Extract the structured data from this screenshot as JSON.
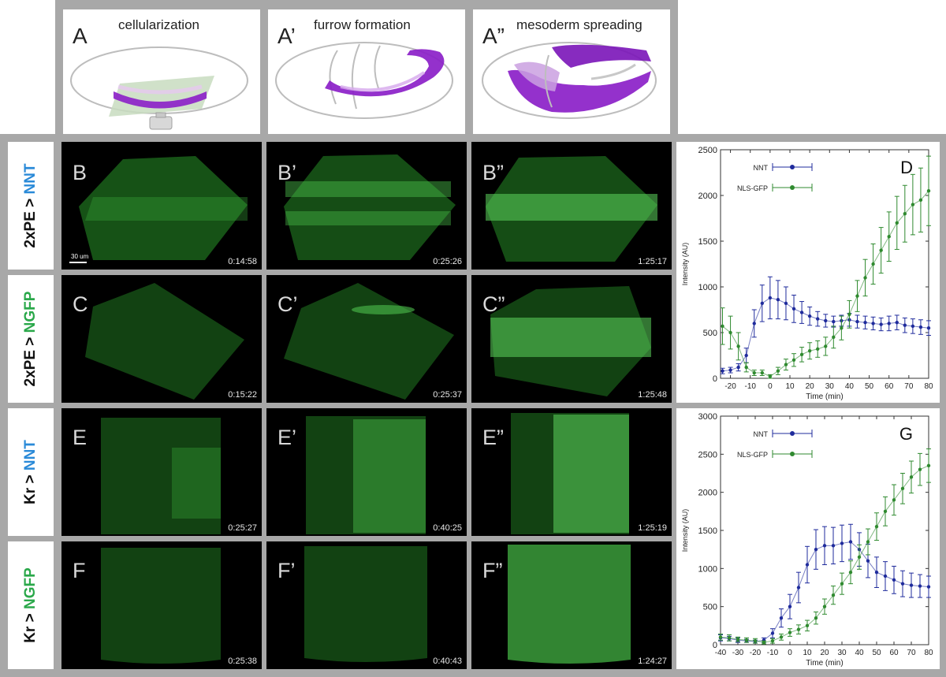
{
  "top_panels": [
    {
      "letter": "A",
      "title": "cellularization"
    },
    {
      "letter": "A’",
      "title": "furrow formation"
    },
    {
      "letter": "A”",
      "title": "mesoderm spreading"
    }
  ],
  "rows": [
    {
      "promoter": "2xPE",
      "arrow": ">",
      "reporter": "NNT",
      "reporter_color": "#2a8ad8",
      "panels": [
        {
          "letter": "B",
          "time": "0:14:58"
        },
        {
          "letter": "B’",
          "time": "0:25:26"
        },
        {
          "letter": "B”",
          "time": "1:25:17"
        }
      ]
    },
    {
      "promoter": "2xPE",
      "arrow": ">",
      "reporter": "NGFP",
      "reporter_color": "#2aa84a",
      "panels": [
        {
          "letter": "C",
          "time": "0:15:22"
        },
        {
          "letter": "C’",
          "time": "0:25:37"
        },
        {
          "letter": "C”",
          "time": "1:25:48"
        }
      ]
    },
    {
      "promoter": "Kr",
      "arrow": ">",
      "reporter": "NNT",
      "reporter_color": "#2a8ad8",
      "panels": [
        {
          "letter": "E",
          "time": "0:25:27"
        },
        {
          "letter": "E’",
          "time": "0:40:25"
        },
        {
          "letter": "E”",
          "time": "1:25:19"
        }
      ]
    },
    {
      "promoter": "Kr",
      "arrow": ">",
      "reporter": "NGFP",
      "reporter_color": "#2aa84a",
      "panels": [
        {
          "letter": "F",
          "time": "0:25:38"
        },
        {
          "letter": "F’",
          "time": "0:40:43"
        },
        {
          "letter": "F”",
          "time": "1:24:27"
        }
      ]
    }
  ],
  "scale_bar": "30 um",
  "colors": {
    "nnt": "#1f2b9c",
    "nls_gfp": "#2f8a2f",
    "microscopy_green": "#3aa83a",
    "embryo_purple": "#8b1fc8"
  },
  "chart_data": [
    {
      "type": "line",
      "panel_letter": "D",
      "xlabel": "Time (min)",
      "ylabel": "Intensity (AU)",
      "xlim": [
        -25,
        80
      ],
      "ylim": [
        0,
        2500
      ],
      "xticks": [
        -20,
        -10,
        0,
        10,
        20,
        30,
        40,
        50,
        60,
        70,
        80
      ],
      "yticks": [
        0,
        500,
        1000,
        1500,
        2000,
        2500
      ],
      "legend_position": "top-left",
      "series": [
        {
          "name": "NNT",
          "color": "#1f2b9c",
          "x": [
            -24,
            -20,
            -16,
            -12,
            -8,
            -4,
            0,
            4,
            8,
            12,
            16,
            20,
            24,
            28,
            32,
            36,
            40,
            44,
            48,
            52,
            56,
            60,
            64,
            68,
            72,
            76,
            80
          ],
          "y": [
            80,
            90,
            120,
            250,
            600,
            820,
            880,
            860,
            820,
            760,
            720,
            680,
            650,
            630,
            620,
            630,
            640,
            620,
            610,
            600,
            590,
            600,
            610,
            580,
            570,
            560,
            550
          ],
          "err": [
            30,
            30,
            40,
            80,
            150,
            200,
            230,
            210,
            180,
            150,
            120,
            100,
            80,
            70,
            60,
            60,
            70,
            70,
            70,
            70,
            70,
            80,
            80,
            80,
            80,
            80,
            80
          ]
        },
        {
          "name": "NLS-GFP",
          "color": "#2f8a2f",
          "x": [
            -24,
            -20,
            -16,
            -12,
            -8,
            -4,
            0,
            4,
            8,
            12,
            16,
            20,
            24,
            28,
            32,
            36,
            40,
            44,
            48,
            52,
            56,
            60,
            64,
            68,
            72,
            76,
            80
          ],
          "y": [
            570,
            500,
            350,
            120,
            60,
            60,
            20,
            80,
            150,
            200,
            260,
            300,
            320,
            350,
            450,
            550,
            700,
            900,
            1100,
            1250,
            1400,
            1550,
            1700,
            1800,
            1900,
            1950,
            2050
          ],
          "err": [
            200,
            180,
            150,
            50,
            30,
            30,
            20,
            40,
            60,
            70,
            80,
            90,
            90,
            100,
            120,
            130,
            150,
            170,
            200,
            220,
            250,
            270,
            290,
            310,
            330,
            350,
            380
          ]
        }
      ]
    },
    {
      "type": "line",
      "panel_letter": "G",
      "xlabel": "Time (min)",
      "ylabel": "Intensity (AU)",
      "xlim": [
        -40,
        80
      ],
      "ylim": [
        0,
        3000
      ],
      "xticks": [
        -40,
        -30,
        -20,
        -10,
        0,
        10,
        20,
        30,
        40,
        50,
        60,
        70,
        80
      ],
      "yticks": [
        0,
        500,
        1000,
        1500,
        2000,
        2500,
        3000
      ],
      "legend_position": "top-left",
      "series": [
        {
          "name": "NNT",
          "color": "#1f2b9c",
          "x": [
            -40,
            -35,
            -30,
            -25,
            -20,
            -15,
            -10,
            -5,
            0,
            5,
            10,
            15,
            20,
            25,
            30,
            35,
            40,
            45,
            50,
            55,
            60,
            65,
            70,
            75,
            80
          ],
          "y": [
            90,
            80,
            60,
            50,
            40,
            60,
            150,
            350,
            500,
            750,
            1050,
            1250,
            1300,
            1300,
            1330,
            1350,
            1250,
            1100,
            950,
            900,
            850,
            800,
            780,
            770,
            760
          ],
          "err": [
            40,
            30,
            30,
            20,
            20,
            30,
            60,
            120,
            160,
            200,
            240,
            260,
            250,
            240,
            240,
            230,
            220,
            220,
            200,
            190,
            180,
            170,
            160,
            150,
            140
          ]
        },
        {
          "name": "NLS-GFP",
          "color": "#2f8a2f",
          "x": [
            -40,
            -35,
            -30,
            -25,
            -20,
            -15,
            -10,
            -5,
            0,
            5,
            10,
            15,
            20,
            25,
            30,
            35,
            40,
            45,
            50,
            55,
            60,
            65,
            70,
            75,
            80
          ],
          "y": [
            100,
            90,
            70,
            60,
            50,
            30,
            50,
            100,
            160,
            200,
            250,
            350,
            500,
            650,
            800,
            950,
            1150,
            1350,
            1550,
            1750,
            1900,
            2050,
            2200,
            2300,
            2350
          ],
          "err": [
            40,
            40,
            30,
            30,
            30,
            20,
            30,
            40,
            50,
            60,
            70,
            80,
            100,
            120,
            140,
            150,
            160,
            170,
            180,
            190,
            200,
            200,
            210,
            210,
            220
          ]
        }
      ]
    }
  ]
}
